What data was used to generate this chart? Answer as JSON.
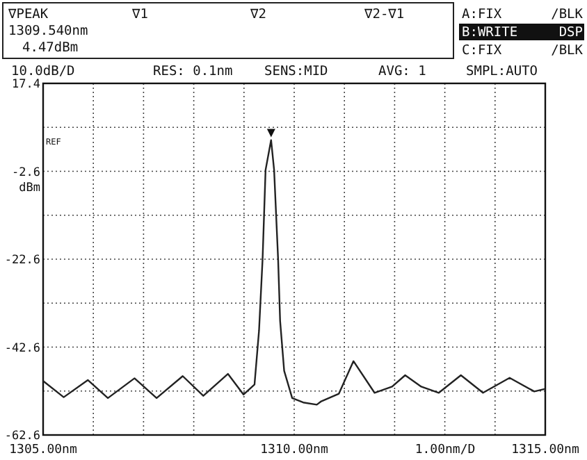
{
  "chart_data": {
    "type": "line",
    "ylabel": "dBm",
    "xlabel": "1.00nm/D",
    "x": [
      1305.0,
      1305.41,
      1305.89,
      1306.29,
      1306.82,
      1307.26,
      1307.78,
      1308.19,
      1308.68,
      1308.99,
      1309.21,
      1309.3,
      1309.37,
      1309.43,
      1309.54,
      1309.6,
      1309.68,
      1309.72,
      1309.8,
      1309.96,
      1310.18,
      1310.45,
      1310.53,
      1310.89,
      1311.18,
      1311.6,
      1311.95,
      1312.21,
      1312.53,
      1312.88,
      1313.32,
      1313.76,
      1314.29,
      1314.78,
      1315.0
    ],
    "series": [
      {
        "color": "#222222",
        "values": [
          -50.3,
          -54.0,
          -50.1,
          -54.2,
          -49.7,
          -54.2,
          -49.2,
          -53.7,
          -48.7,
          -53.4,
          -51.1,
          -38.8,
          -22.7,
          -2.3,
          4.5,
          -2.3,
          -22.7,
          -36.7,
          -48.0,
          -54.2,
          -55.2,
          -55.7,
          -55.0,
          -53.2,
          -45.8,
          -53.0,
          -51.6,
          -49.0,
          -51.6,
          -53.0,
          -49.0,
          -53.0,
          -49.6,
          -52.7,
          -52.1
        ]
      }
    ],
    "xlim": [
      1305,
      1315
    ],
    "xticks": [
      {
        "value": 1305,
        "label": "1305.00nm"
      },
      {
        "value": 1306,
        "label": null
      },
      {
        "value": 1307,
        "label": null
      },
      {
        "value": 1308,
        "label": null
      },
      {
        "value": 1309,
        "label": null
      },
      {
        "value": 1310,
        "label": "1310.00nm"
      },
      {
        "value": 1311,
        "label": null
      },
      {
        "value": 1312,
        "label": null
      },
      {
        "value": 1313,
        "label": null
      },
      {
        "value": 1314,
        "label": null
      },
      {
        "value": 1315,
        "label": "1315.00nm"
      }
    ],
    "ylim": [
      -62.6,
      17.4
    ],
    "yticks": [
      17.4,
      {
        "value": 7.4,
        "label": null
      },
      -2.6,
      {
        "value": -12.6,
        "label": null
      },
      -22.6,
      {
        "value": -32.6,
        "label": null
      },
      -42.6,
      {
        "value": -52.6,
        "label": null
      },
      -62.6
    ],
    "grid": true,
    "marker": "none",
    "line_style": "solid",
    "annotations": [
      "∇PEAK",
      "1309.540nm",
      "4.47dBm",
      "∇1",
      "∇2",
      "∇2-∇1",
      "A:FIX",
      "/BLK",
      "B:WRITE",
      "DSP",
      "C:FIX",
      "/BLK",
      "10.0dB/D",
      "RES: 0.1nm",
      "SENS:MID",
      "AVG:   1",
      "SMPL:AUTO",
      "REF"
    ]
  }
}
